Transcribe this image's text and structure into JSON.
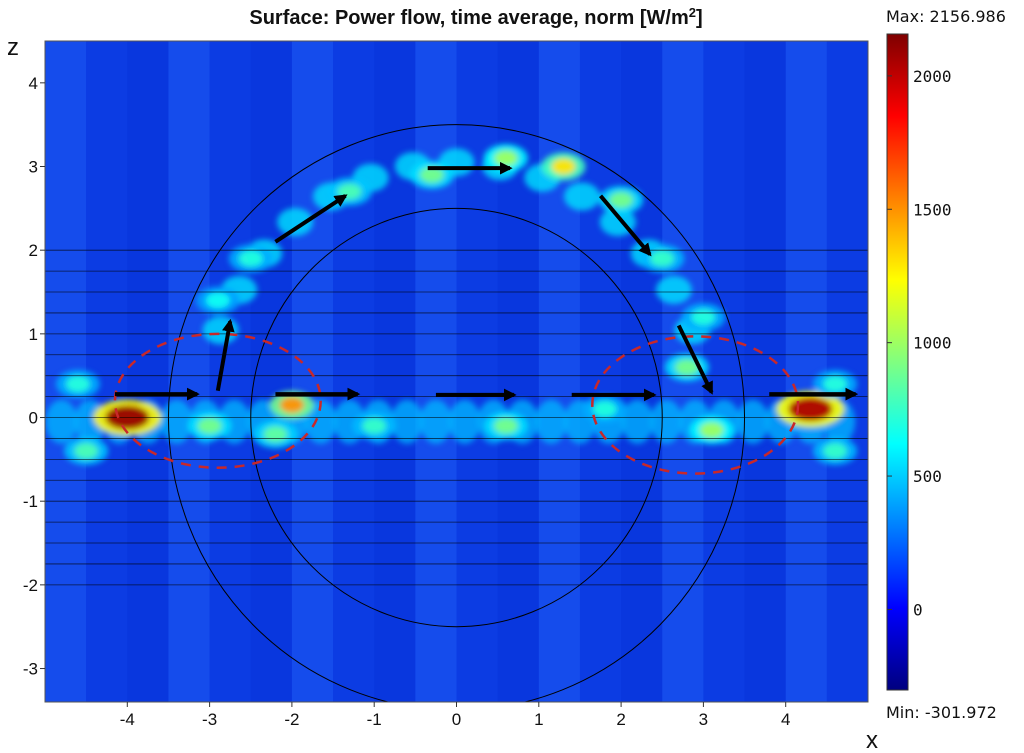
{
  "chart_data": {
    "type": "heatmap",
    "title": "Surface: Power flow, time average, norm [W/m",
    "title_sup": "2",
    "title_end": "]",
    "xlabel": "x",
    "ylabel": "z",
    "xlim": [
      -5,
      5
    ],
    "ylim": [
      -3.4,
      4.5
    ],
    "xticks": [
      -4,
      -3,
      -2,
      -1,
      0,
      1,
      2,
      3,
      4
    ],
    "yticks": [
      -3,
      -2,
      -1,
      0,
      1,
      2,
      3,
      4
    ],
    "colorbar": {
      "max_label": "Max: 2156.986",
      "min_label": "Min: -301.972",
      "max": 2156.986,
      "min": -301.972,
      "ticks": [
        0,
        500,
        1000,
        1500,
        2000
      ],
      "colormap": "rainbow",
      "colors": [
        "#00007f",
        "#0000ff",
        "#0080ff",
        "#00ffff",
        "#80ff80",
        "#ffff00",
        "#ff8000",
        "#ff0000",
        "#7f0000"
      ]
    },
    "background_value": 150,
    "horizontal_lines_z": [
      -2,
      -1.75,
      -1.5,
      -1.25,
      -1,
      -0.75,
      -0.5,
      -0.25,
      0,
      0.25,
      0.5,
      0.75,
      1,
      1.25,
      1.5,
      1.75,
      2
    ],
    "horizontal_lines_x": [
      -5,
      5
    ],
    "circles": [
      {
        "cx": 0,
        "cz": 0,
        "r": 3.5
      },
      {
        "cx": 0,
        "cz": 0,
        "r": 2.5
      }
    ],
    "dashed_ellipses": [
      {
        "cx": -2.9,
        "cz": 0.2,
        "rx": 1.25,
        "rz": 0.8
      },
      {
        "cx": 2.9,
        "cz": 0.15,
        "rx": 1.25,
        "rz": 0.82
      }
    ],
    "arrows": [
      {
        "x1": -4.15,
        "z1": 0.28,
        "x2": -3.15,
        "z2": 0.28
      },
      {
        "x1": -2.9,
        "z1": 0.32,
        "x2": -2.75,
        "z2": 1.15
      },
      {
        "x1": -2.2,
        "z1": 0.28,
        "x2": -1.2,
        "z2": 0.28
      },
      {
        "x1": -2.2,
        "z1": 2.1,
        "x2": -1.35,
        "z2": 2.65
      },
      {
        "x1": -0.35,
        "z1": 2.98,
        "x2": 0.65,
        "z2": 2.98
      },
      {
        "x1": 1.75,
        "z1": 2.65,
        "x2": 2.35,
        "z2": 1.95
      },
      {
        "x1": -0.25,
        "z1": 0.27,
        "x2": 0.7,
        "z2": 0.27
      },
      {
        "x1": 1.4,
        "z1": 0.27,
        "x2": 2.4,
        "z2": 0.27
      },
      {
        "x1": 2.7,
        "z1": 1.1,
        "x2": 3.1,
        "z2": 0.3
      },
      {
        "x1": 3.8,
        "z1": 0.28,
        "x2": 4.85,
        "z2": 0.28
      }
    ],
    "hotspots": [
      {
        "x": -4.0,
        "z": 0.0,
        "v": 2100
      },
      {
        "x": 4.3,
        "z": 0.1,
        "v": 2050
      },
      {
        "x": -2.0,
        "z": 0.15,
        "v": 1500
      },
      {
        "x": 1.3,
        "z": 3.0,
        "v": 1300
      },
      {
        "x": -0.3,
        "z": 2.9,
        "v": 900
      },
      {
        "x": 0.6,
        "z": 3.1,
        "v": 1000
      },
      {
        "x": -1.3,
        "z": 2.7,
        "v": 800
      },
      {
        "x": 2.0,
        "z": 2.6,
        "v": 900
      },
      {
        "x": 2.5,
        "z": 1.9,
        "v": 750
      },
      {
        "x": -2.5,
        "z": 1.9,
        "v": 700
      },
      {
        "x": -2.9,
        "z": 1.4,
        "v": 650
      },
      {
        "x": 3.0,
        "z": 1.2,
        "v": 700
      },
      {
        "x": 2.8,
        "z": 0.6,
        "v": 900
      },
      {
        "x": 3.1,
        "z": -0.15,
        "v": 1000
      },
      {
        "x": -3.0,
        "z": -0.1,
        "v": 900
      },
      {
        "x": 0.6,
        "z": -0.1,
        "v": 900
      },
      {
        "x": -1.0,
        "z": -0.1,
        "v": 750
      },
      {
        "x": 1.8,
        "z": 0.1,
        "v": 700
      },
      {
        "x": -4.5,
        "z": -0.4,
        "v": 800
      },
      {
        "x": -4.6,
        "z": 0.4,
        "v": 700
      },
      {
        "x": 4.6,
        "z": -0.4,
        "v": 750
      },
      {
        "x": 4.6,
        "z": 0.4,
        "v": 700
      },
      {
        "x": -2.2,
        "z": -0.2,
        "v": 850
      }
    ]
  }
}
